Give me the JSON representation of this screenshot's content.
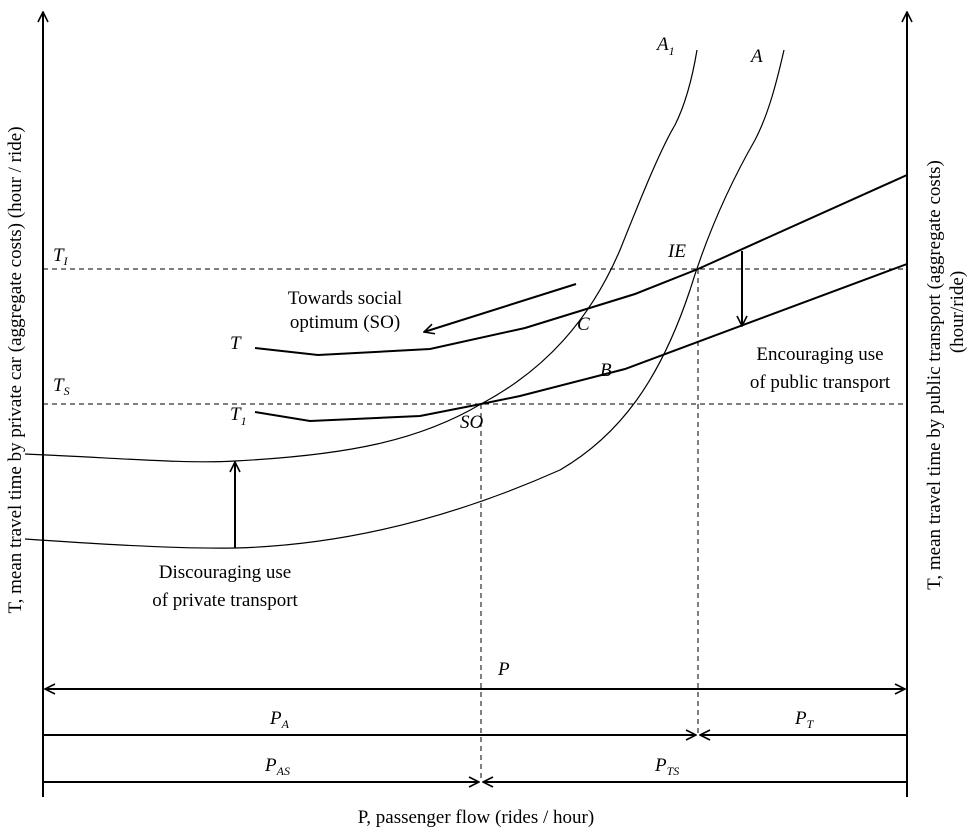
{
  "labels": {
    "x_axis": "P, passenger flow (rides / hour)",
    "y_axis_left": "T, mean travel time by private car (aggregate costs) (hour / ride)",
    "y_axis_right_line1": "T, mean travel time by public transport (aggregate costs)",
    "y_axis_right_line2": "(hour/ride)",
    "curve_A1": "A",
    "curve_A1_sub": "1",
    "curve_A": "A",
    "curve_T": "T",
    "curve_T1": "T",
    "curve_T1_sub": "1",
    "level_TI": "T",
    "level_TI_sub": "I",
    "level_TS": "T",
    "level_TS_sub": "S",
    "point_IE": "IE",
    "point_C": "C",
    "point_B": "B",
    "point_SO": "SO",
    "arrow_towards_line1": "Towards social",
    "arrow_towards_line2": "optimum (SO)",
    "arrow_encouraging_line1": "Encouraging use",
    "arrow_encouraging_line2": "of public transport",
    "arrow_discouraging_line1": "Discouraging use",
    "arrow_discouraging_line2": "of private transport",
    "bracket_P": "P",
    "bracket_PA": "P",
    "bracket_PA_sub": "A",
    "bracket_PT": "P",
    "bracket_PT_sub": "T",
    "bracket_PAS": "P",
    "bracket_PAS_sub": "AS",
    "bracket_PTS": "P",
    "bracket_PTS_sub": "TS"
  }
}
